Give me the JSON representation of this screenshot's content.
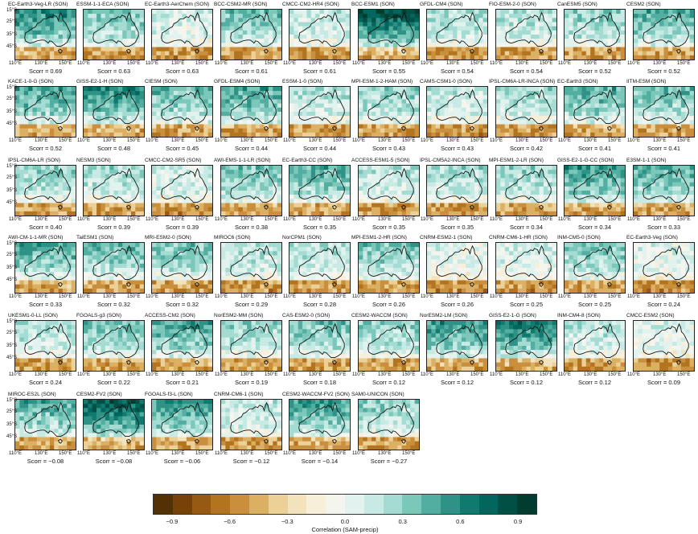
{
  "chart_data": {
    "type": "heatmap",
    "season": "SON",
    "map_ticks": {
      "y": [
        "15°S",
        "25°S",
        "35°S",
        "45°S"
      ],
      "x": [
        "110°E",
        "130°E",
        "150°E"
      ]
    },
    "panels": [
      {
        "model": "EC-Earth3-Veg-LR (SON)",
        "scorr": "Scorr = 0.69",
        "wet": 0.6
      },
      {
        "model": "ESSM-1-1-ECA (SON)",
        "scorr": "Scorr = 0.63",
        "wet": 0.35
      },
      {
        "model": "EC-Earth3-AerChem (SON)",
        "scorr": "Scorr = 0.63",
        "wet": 0.1
      },
      {
        "model": "BCC-CSM2-MR (SON)",
        "scorr": "Scorr = 0.61",
        "wet": 0.4
      },
      {
        "model": "CMCC-CM2-HR4 (SON)",
        "scorr": "Scorr = 0.61",
        "wet": 0.15
      },
      {
        "model": "BCC-ESM1 (SON)",
        "scorr": "Scorr = 0.55",
        "wet": 0.85
      },
      {
        "model": "GFDL-CM4 (SON)",
        "scorr": "Scorr = 0.54",
        "wet": 0.25
      },
      {
        "model": "FIO-ESM-2-0 (SON)",
        "scorr": "Scorr = 0.54",
        "wet": 0.2
      },
      {
        "model": "CanESM5 (SON)",
        "scorr": "Scorr = 0.52",
        "wet": 0.3
      },
      {
        "model": "CESM2 (SON)",
        "scorr": "Scorr = 0.52",
        "wet": 0.45
      },
      {
        "model": "KACE-1-0-G (SON)",
        "scorr": "Scorr = 0.52",
        "wet": 0.5
      },
      {
        "model": "GISS-E2-1-H (SON)",
        "scorr": "Scorr = 0.48",
        "wet": 0.6
      },
      {
        "model": "CIESM (SON)",
        "scorr": "Scorr = 0.45",
        "wet": 0.4
      },
      {
        "model": "GFDL-ESM4 (SON)",
        "scorr": "Scorr = 0.44",
        "wet": 0.5
      },
      {
        "model": "ESSM-1-0 (SON)",
        "scorr": "Scorr = 0.44",
        "wet": 0.2
      },
      {
        "model": "MPI-ESM-1-2-HAM (SON)",
        "scorr": "Scorr = 0.43",
        "wet": 0.3
      },
      {
        "model": "CAMS-CSM1-0 (SON)",
        "scorr": "Scorr = 0.43",
        "wet": 0.15
      },
      {
        "model": "IPSL-CM6A-LR-INCA (SON)",
        "scorr": "Scorr = 0.42",
        "wet": 0.25
      },
      {
        "model": "EC-Earth3 (SON)",
        "scorr": "Scorr = 0.41",
        "wet": 0.45
      },
      {
        "model": "IITM-ESM (SON)",
        "scorr": "Scorr = 0.41",
        "wet": 0.4
      },
      {
        "model": "IPSL-CM6A-LR (SON)",
        "scorr": "Scorr = 0.40",
        "wet": 0.3
      },
      {
        "model": "NESM3 (SON)",
        "scorr": "Scorr = 0.39",
        "wet": 0.25
      },
      {
        "model": "CMCC-CM2-SR5 (SON)",
        "scorr": "Scorr = 0.39",
        "wet": 0.1
      },
      {
        "model": "AWI-EMS-1-1-LR (SON)",
        "scorr": "Scorr = 0.38",
        "wet": 0.35
      },
      {
        "model": "EC-Earth3-CC (SON)",
        "scorr": "Scorr = 0.35",
        "wet": 0.45
      },
      {
        "model": "ACCESS-ESM1-5 (SON)",
        "scorr": "Scorr = 0.35",
        "wet": 0.2
      },
      {
        "model": "IPSL-CM5A2-INCA (SON)",
        "scorr": "Scorr = 0.35",
        "wet": 0.25
      },
      {
        "model": "MPI-ESM1-2-LR (SON)",
        "scorr": "Scorr = 0.34",
        "wet": 0.3
      },
      {
        "model": "GISS-E2-1-G-CC (SON)",
        "scorr": "Scorr = 0.34",
        "wet": 0.55
      },
      {
        "model": "E3SM-1-1 (SON)",
        "scorr": "Scorr = 0.33",
        "wet": 0.45
      },
      {
        "model": "AWI-CM-1-1-MR (SON)",
        "scorr": "Scorr = 0.33",
        "wet": 0.45
      },
      {
        "model": "TaiESM1 (SON)",
        "scorr": "Scorr = 0.32",
        "wet": 0.4
      },
      {
        "model": "MRI-ESM2-0 (SON)",
        "scorr": "Scorr = 0.32",
        "wet": 0.35
      },
      {
        "model": "MIROC6 (SON)",
        "scorr": "Scorr = 0.29",
        "wet": 0.2
      },
      {
        "model": "NorCPM1 (SON)",
        "scorr": "Scorr = 0.28",
        "wet": 0.2
      },
      {
        "model": "MPI-ESM1-2-HR (SON)",
        "scorr": "Scorr = 0.26",
        "wet": 0.35
      },
      {
        "model": "CNRM-ESM2-1 (SON)",
        "scorr": "Scorr = 0.26",
        "wet": 0.05
      },
      {
        "model": "CNRM-CM6-1-HR (SON)",
        "scorr": "Scorr = 0.25",
        "wet": 0.1
      },
      {
        "model": "INM-CM5-0 (SON)",
        "scorr": "Scorr = 0.25",
        "wet": 0.35
      },
      {
        "model": "EC-Earth3-Veg (SON)",
        "scorr": "Scorr = 0.24",
        "wet": 0.05
      },
      {
        "model": "UKESM1-0-LL (SON)",
        "scorr": "Scorr = 0.24",
        "wet": 0.2
      },
      {
        "model": "FGOALS-g3 (SON)",
        "scorr": "Scorr = 0.22",
        "wet": 0.4
      },
      {
        "model": "ACCESS-CM2 (SON)",
        "scorr": "Scorr = 0.21",
        "wet": 0.5
      },
      {
        "model": "NorESM2-MM (SON)",
        "scorr": "Scorr = 0.19",
        "wet": 0.3
      },
      {
        "model": "CAS-ESM2-0 (SON)",
        "scorr": "Scorr = 0.18",
        "wet": 0.35
      },
      {
        "model": "CESM2-WACCM (SON)",
        "scorr": "Scorr = 0.12",
        "wet": 0.3
      },
      {
        "model": "NorESM2-LM (SON)",
        "scorr": "Scorr = 0.12",
        "wet": 0.55
      },
      {
        "model": "GISS-E2-1-G (SON)",
        "scorr": "Scorr = 0.12",
        "wet": 0.65
      },
      {
        "model": "INM-CM4-8 (SON)",
        "scorr": "Scorr = 0.12",
        "wet": 0.2
      },
      {
        "model": "CMCC-ESM2 (SON)",
        "scorr": "Scorr = 0.09",
        "wet": 0.05
      },
      {
        "model": "MIROC-ES2L (SON)",
        "scorr": "Scorr = −0.08",
        "wet": 0.45
      },
      {
        "model": "CESM2-FV2 (SON)",
        "scorr": "Scorr = −0.08",
        "wet": 0.8
      },
      {
        "model": "FGOALS-f3-L (SON)",
        "scorr": "Scorr = −0.06",
        "wet": 0.55
      },
      {
        "model": "CNRM-CM6-1 (SON)",
        "scorr": "Scorr = −0.12",
        "wet": 0.15
      },
      {
        "model": "CESM2-WACCM-FV2 (SON)",
        "scorr": "Scorr = −0.14",
        "wet": 0.5
      },
      {
        "model": "SAM0-UNICON (SON)",
        "scorr": "Scorr = −0.27",
        "wet": 0.3
      }
    ],
    "colorbar": {
      "label": "Correlation (SAM-precip)",
      "range": [
        -1.0,
        1.0
      ],
      "ticks": [
        "−0.9",
        "−0.6",
        "−0.3",
        "0.0",
        "0.3",
        "0.6",
        "0.9"
      ],
      "tick_values": [
        -0.9,
        -0.6,
        -0.3,
        0.0,
        0.3,
        0.6,
        0.9
      ],
      "colors": [
        "#543005",
        "#774209",
        "#975a12",
        "#b3741f",
        "#c98f3c",
        "#dbb063",
        "#ebd097",
        "#f3e3bd",
        "#f7efd9",
        "#f5f5f0",
        "#e2f2ee",
        "#c7eae5",
        "#a4dcd3",
        "#7bc8bb",
        "#52aea0",
        "#2f9286",
        "#107a6f",
        "#01665e",
        "#024f46",
        "#003c30"
      ]
    }
  }
}
